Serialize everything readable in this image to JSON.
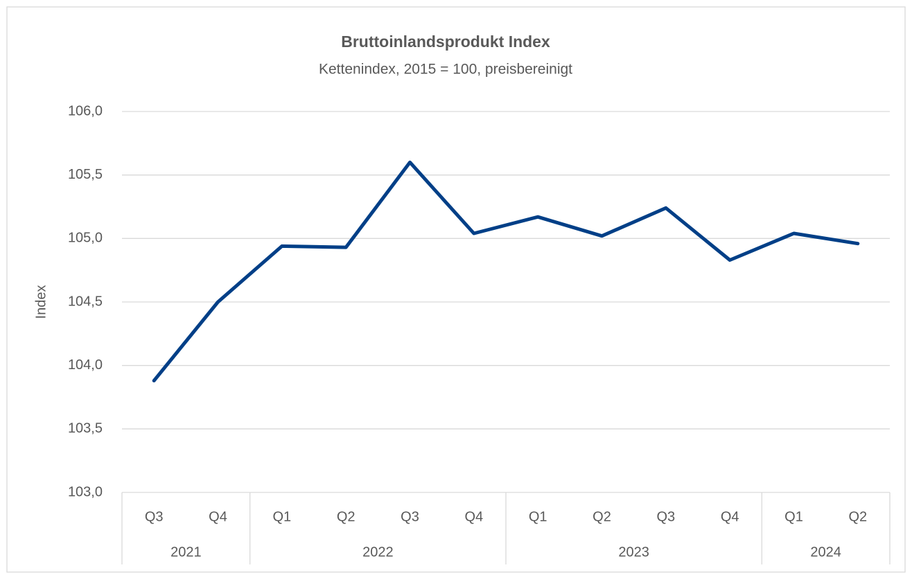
{
  "chart_data": {
    "type": "line",
    "title": "Bruttoinlandsprodukt Index",
    "subtitle": "Kettenindex, 2015 = 100, preisbereinigt",
    "ylabel": "Index",
    "groups": [
      {
        "label": "2021",
        "categories": [
          "Q3",
          "Q4"
        ]
      },
      {
        "label": "2022",
        "categories": [
          "Q1",
          "Q2",
          "Q3",
          "Q4"
        ]
      },
      {
        "label": "2023",
        "categories": [
          "Q1",
          "Q2",
          "Q3",
          "Q4"
        ]
      },
      {
        "label": "2024",
        "categories": [
          "Q1",
          "Q2"
        ]
      }
    ],
    "values": [
      103.88,
      104.5,
      104.94,
      104.93,
      105.6,
      105.04,
      105.17,
      105.02,
      105.24,
      104.83,
      105.04,
      104.96
    ],
    "color": "#003f87",
    "ylim": [
      103,
      106
    ],
    "yticks": [
      {
        "value": 103,
        "label": "103,0"
      },
      {
        "value": 103.5,
        "label": "103,5"
      },
      {
        "value": 104,
        "label": "104,0"
      },
      {
        "value": 104.5,
        "label": "104,5"
      },
      {
        "value": 105,
        "label": "105,0"
      },
      {
        "value": 105.5,
        "label": "105,5"
      },
      {
        "value": 106,
        "label": "106,0"
      }
    ],
    "grid": true
  }
}
